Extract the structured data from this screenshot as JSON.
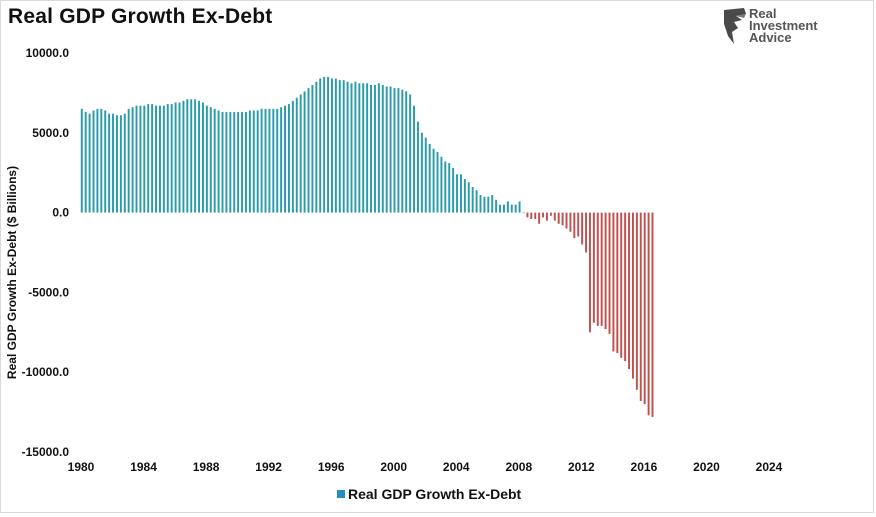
{
  "chart_data": {
    "type": "bar",
    "title": "Real GDP Growth Ex-Debt",
    "xlabel": "",
    "ylabel": "Real GDP Growth Ex-Debt ($ Billions)",
    "ylim": [
      -15000,
      10000
    ],
    "xlim": [
      1980,
      2025.25
    ],
    "y_ticks": [
      "10000.0",
      "5000.0",
      "0.0",
      "-5000.0",
      "-10000.0",
      "-15000.0"
    ],
    "y_tick_values": [
      10000,
      5000,
      0,
      -5000,
      -10000,
      -15000
    ],
    "x_ticks": [
      "1980",
      "1984",
      "1988",
      "1992",
      "1996",
      "2000",
      "2004",
      "2008",
      "2012",
      "2016",
      "2020",
      "2024"
    ],
    "x_tick_values": [
      1980,
      1984,
      1988,
      1992,
      1996,
      2000,
      2004,
      2008,
      2012,
      2016,
      2020,
      2024
    ],
    "grid": false,
    "legend": {
      "position": "bottom-center",
      "entries": [
        "Real GDP Growth Ex-Debt"
      ]
    },
    "frequency": "quarterly",
    "start": "1980 Q1",
    "positive_color": "#2a9bab",
    "negative_color": "#c0504d",
    "series": [
      {
        "name": "Real GDP Growth Ex-Debt",
        "values": [
          6500,
          6300,
          6200,
          6400,
          6500,
          6500,
          6400,
          6200,
          6200,
          6100,
          6100,
          6200,
          6500,
          6600,
          6700,
          6700,
          6700,
          6800,
          6800,
          6700,
          6700,
          6700,
          6800,
          6800,
          6900,
          6900,
          7000,
          7100,
          7100,
          7100,
          7000,
          6900,
          6700,
          6600,
          6500,
          6400,
          6300,
          6300,
          6300,
          6300,
          6300,
          6300,
          6300,
          6400,
          6400,
          6400,
          6500,
          6500,
          6500,
          6500,
          6500,
          6600,
          6700,
          6800,
          7000,
          7200,
          7400,
          7600,
          7800,
          8000,
          8200,
          8400,
          8500,
          8500,
          8400,
          8400,
          8300,
          8300,
          8200,
          8100,
          8200,
          8100,
          8100,
          8100,
          8000,
          8000,
          8100,
          8000,
          7900,
          7900,
          7800,
          7800,
          7700,
          7600,
          7400,
          6700,
          5700,
          5000,
          4700,
          4300,
          4000,
          3800,
          3500,
          3200,
          3100,
          2800,
          2400,
          2400,
          2100,
          1900,
          1600,
          1400,
          1100,
          1000,
          1000,
          1100,
          800,
          500,
          500,
          700,
          500,
          500,
          700,
          0,
          -300,
          -400,
          -400,
          -700,
          -300,
          -500,
          -200,
          -500,
          -700,
          -800,
          -1000,
          -1200,
          -1600,
          -1500,
          -2000,
          -2500,
          -7500,
          -6900,
          -7100,
          -7100,
          -7300,
          -7600,
          -8700,
          -8800,
          -9100,
          -9300,
          -9800,
          -10400,
          -11100,
          -11800,
          -12000,
          -12700,
          -12800
        ]
      }
    ]
  }
}
